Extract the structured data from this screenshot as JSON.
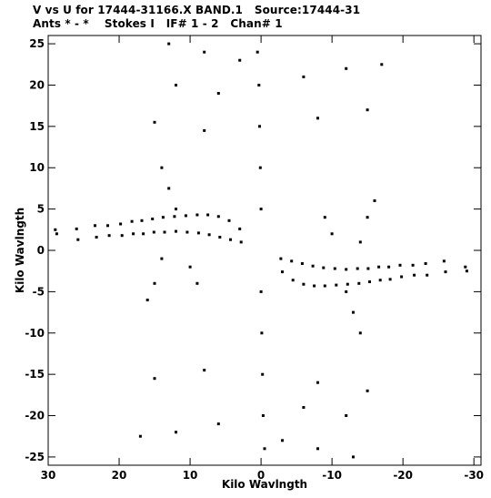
{
  "header": {
    "line1": "V vs U for 17444-31166.X BAND.1   Source:17444-31",
    "line2": "Ants * - *    Stokes I   IF# 1 - 2   Chan# 1"
  },
  "chart_data": {
    "type": "scatter",
    "title": "V vs U for 17444-31166.X BAND.1   Source:17444-31",
    "subtitle": "Ants * - *    Stokes I   IF# 1 - 2   Chan# 1",
    "xlabel": "Kilo Wavlngth",
    "ylabel": "Kilo Wavlngth",
    "xlim": [
      30,
      -31
    ],
    "ylim": [
      -26,
      26
    ],
    "x_ticks": [
      30,
      20,
      10,
      0,
      -10,
      -20,
      -30
    ],
    "x_tick_labels": [
      "30",
      "20",
      "10",
      "0",
      "-10",
      "-20",
      "-30"
    ],
    "y_ticks": [
      25,
      20,
      15,
      10,
      5,
      0,
      -5,
      -10,
      -15,
      -20,
      -25
    ],
    "y_tick_labels": [
      "25",
      "20",
      "15",
      "10",
      "5",
      "0",
      "-5",
      "-10",
      "-15",
      "-20",
      "-25"
    ],
    "grid": false,
    "series": [
      {
        "points": [
          [
            29,
            2.5
          ],
          [
            28.8,
            2.0
          ],
          [
            26,
            2.6
          ],
          [
            25.8,
            1.3
          ],
          [
            23.4,
            3.0
          ],
          [
            23.2,
            1.6
          ],
          [
            21.6,
            3.0
          ],
          [
            21.4,
            1.8
          ],
          [
            19.8,
            3.2
          ],
          [
            19.6,
            1.8
          ],
          [
            18.2,
            3.5
          ],
          [
            18,
            2.0
          ],
          [
            16.8,
            3.6
          ],
          [
            16.6,
            2.0
          ],
          [
            15.3,
            3.8
          ],
          [
            15.1,
            2.2
          ],
          [
            13.8,
            4.0
          ],
          [
            13.6,
            2.2
          ],
          [
            12.2,
            4.1
          ],
          [
            12,
            2.3
          ],
          [
            10.6,
            4.2
          ],
          [
            10.4,
            2.2
          ],
          [
            9,
            4.3
          ],
          [
            8.8,
            2.1
          ],
          [
            7.5,
            4.3
          ],
          [
            7.3,
            1.9
          ],
          [
            6,
            4.1
          ],
          [
            5.8,
            1.6
          ],
          [
            4.5,
            3.6
          ],
          [
            4.3,
            1.3
          ],
          [
            3,
            2.6
          ],
          [
            2.8,
            1.0
          ],
          [
            -29,
            -2.5
          ],
          [
            -28.8,
            -2.0
          ],
          [
            -26,
            -2.6
          ],
          [
            -25.8,
            -1.3
          ],
          [
            -23.4,
            -3.0
          ],
          [
            -23.2,
            -1.6
          ],
          [
            -21.6,
            -3.0
          ],
          [
            -21.4,
            -1.8
          ],
          [
            -19.8,
            -3.2
          ],
          [
            -19.6,
            -1.8
          ],
          [
            -18.2,
            -3.5
          ],
          [
            -18,
            -2.0
          ],
          [
            -16.8,
            -3.6
          ],
          [
            -16.6,
            -2.0
          ],
          [
            -15.3,
            -3.8
          ],
          [
            -15.1,
            -2.2
          ],
          [
            -13.8,
            -4.0
          ],
          [
            -13.6,
            -2.2
          ],
          [
            -12.2,
            -4.1
          ],
          [
            -12,
            -2.3
          ],
          [
            -10.6,
            -4.2
          ],
          [
            -10.4,
            -2.2
          ],
          [
            -9,
            -4.3
          ],
          [
            -8.8,
            -2.1
          ],
          [
            -7.5,
            -4.3
          ],
          [
            -7.3,
            -1.9
          ],
          [
            -6,
            -4.1
          ],
          [
            -5.8,
            -1.6
          ],
          [
            -4.5,
            -3.6
          ],
          [
            -4.3,
            -1.3
          ],
          [
            -3,
            -2.6
          ],
          [
            -2.8,
            -1.0
          ],
          [
            14,
            10
          ],
          [
            13,
            7.5
          ],
          [
            12,
            5
          ],
          [
            10,
            -2
          ],
          [
            9,
            -4
          ],
          [
            16,
            -6
          ],
          [
            15,
            -4
          ],
          [
            14,
            -1
          ],
          [
            -14,
            -10
          ],
          [
            -13,
            -7.5
          ],
          [
            -12,
            -5
          ],
          [
            -10,
            2
          ],
          [
            -9,
            4
          ],
          [
            -16,
            6
          ],
          [
            -15,
            4
          ],
          [
            -14,
            1
          ],
          [
            0.5,
            24
          ],
          [
            0.3,
            20
          ],
          [
            0.2,
            15
          ],
          [
            0.1,
            10
          ],
          [
            0,
            5
          ],
          [
            0,
            -5
          ],
          [
            -0.1,
            -10
          ],
          [
            -0.2,
            -15
          ],
          [
            -0.3,
            -20
          ],
          [
            -0.5,
            -24
          ],
          [
            13,
            25
          ],
          [
            8,
            24
          ],
          [
            3,
            23
          ],
          [
            12,
            20
          ],
          [
            6,
            19
          ],
          [
            -6,
            21
          ],
          [
            -12,
            22
          ],
          [
            -17,
            22.5
          ],
          [
            -13,
            -25
          ],
          [
            -8,
            -24
          ],
          [
            -3,
            -23
          ],
          [
            -12,
            -20
          ],
          [
            -6,
            -19
          ],
          [
            6,
            -21
          ],
          [
            12,
            -22
          ],
          [
            17,
            -22.5
          ],
          [
            15,
            15.5
          ],
          [
            8,
            14.5
          ],
          [
            -8,
            16
          ],
          [
            -15,
            17
          ],
          [
            15,
            -15.5
          ],
          [
            8,
            -14.5
          ],
          [
            -8,
            -16
          ],
          [
            -15,
            -17
          ]
        ]
      }
    ]
  }
}
